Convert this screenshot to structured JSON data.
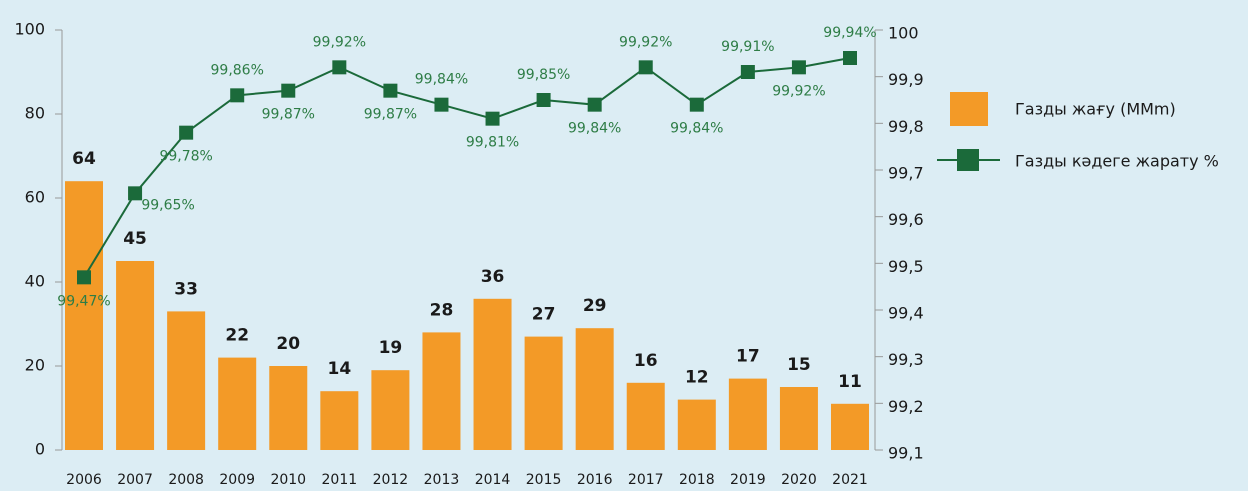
{
  "chart_data": {
    "type": "bar",
    "categories": [
      "2006",
      "2007",
      "2008",
      "2009",
      "2010",
      "2011",
      "2012",
      "2013",
      "2014",
      "2015",
      "2016",
      "2017",
      "2018",
      "2019",
      "2020",
      "2021"
    ],
    "series": [
      {
        "name": "Газды жағу (MMm)",
        "type": "bar",
        "axis": "y",
        "color": "#f39a27",
        "values": [
          64,
          45,
          33,
          22,
          20,
          14,
          19,
          28,
          36,
          27,
          29,
          16,
          12,
          17,
          15,
          11
        ]
      },
      {
        "name": "Газды кәдеге жарату  %",
        "type": "line",
        "axis": "y2",
        "color": "#1b6a3a",
        "values": [
          99.47,
          99.65,
          99.78,
          99.86,
          99.87,
          99.92,
          99.87,
          99.84,
          99.81,
          99.85,
          99.84,
          99.92,
          99.84,
          99.91,
          99.92,
          99.94
        ],
        "value_labels": [
          "99,47%",
          "99,65%",
          "99,78%",
          "99,86%",
          "99,87%",
          "99,92%",
          "99,87%",
          "99,84%",
          "99,81%",
          "99,85%",
          "99,84%",
          "99,92%",
          "99,84%",
          "99,91%",
          "99,92%",
          "99,94%"
        ]
      }
    ],
    "ylim": [
      0,
      100
    ],
    "yticks": [
      0,
      20,
      40,
      60,
      80,
      100
    ],
    "y2lim": [
      99.1,
      100
    ],
    "y2ticks": [
      {
        "value": 99.1,
        "label": "99,1"
      },
      {
        "value": 99.2,
        "label": "99,2"
      },
      {
        "value": 99.3,
        "label": "99,3"
      },
      {
        "value": 99.4,
        "label": "99,4"
      },
      {
        "value": 99.5,
        "label": "99,5"
      },
      {
        "value": 99.6,
        "label": "99,6"
      },
      {
        "value": 99.7,
        "label": "99,7"
      },
      {
        "value": 99.8,
        "label": "99,8"
      },
      {
        "value": 99.9,
        "label": "99,9"
      },
      100
    ],
    "grid": false,
    "legend": "right"
  }
}
